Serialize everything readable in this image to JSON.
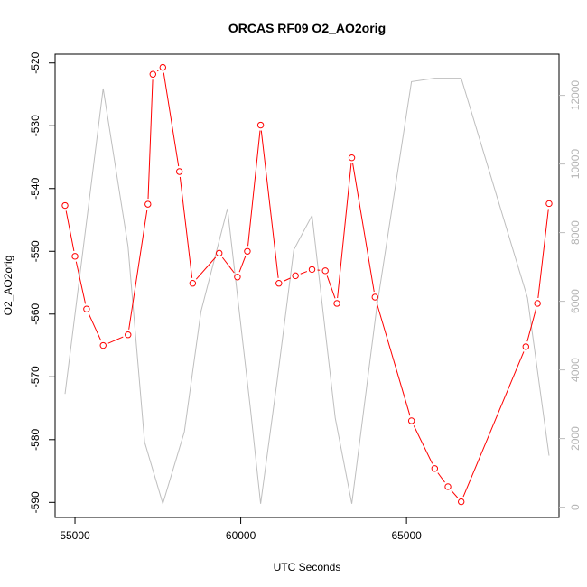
{
  "chart_data": {
    "type": "line",
    "title": "ORCAS RF09 O2_AO2orig",
    "xlabel": "UTC Seconds",
    "ylabel": "O2_AO2orig",
    "xlim": [
      54400,
      69600
    ],
    "ylim": [
      -592.4,
      -518.6
    ],
    "y2lim": [
      -300,
      13200
    ],
    "x_ticks": [
      55000,
      60000,
      65000
    ],
    "y_ticks": [
      -520,
      -530,
      -540,
      -550,
      -560,
      -570,
      -580,
      -590
    ],
    "y2_ticks": [
      0,
      2000,
      4000,
      6000,
      8000,
      10000,
      12000
    ],
    "grid": false,
    "legend": "none",
    "colors": {
      "primary": "#ff0000",
      "secondary": "#bebebe"
    },
    "series": [
      {
        "axis": "left",
        "style": "line+circle",
        "x": [
          54700,
          55000,
          55350,
          55850,
          56600,
          57200,
          57350,
          57650,
          58150,
          58550,
          59350,
          59900,
          60200,
          60600,
          61150,
          61650,
          62150,
          62550,
          62900,
          63350,
          64050,
          65150,
          65850,
          66250,
          66650,
          68600,
          68950,
          69300
        ],
        "values": [
          -542.7,
          -550.8,
          -559.2,
          -565.0,
          -563.3,
          -542.5,
          -521.8,
          -520.7,
          -537.3,
          -555.1,
          -550.3,
          -554.1,
          -550.0,
          -529.9,
          -555.1,
          -553.9,
          -552.9,
          -553.1,
          -558.3,
          -535.1,
          -557.3,
          -577.0,
          -584.6,
          -587.5,
          -589.9,
          -565.2,
          -558.3,
          -542.4
        ]
      },
      {
        "axis": "right",
        "style": "line",
        "x": [
          54700,
          55850,
          56600,
          57100,
          57650,
          58300,
          58800,
          59600,
          60300,
          60600,
          61100,
          61600,
          62150,
          62850,
          63350,
          64100,
          65150,
          65850,
          66650,
          68650,
          69300
        ],
        "values": [
          3300,
          12200,
          7600,
          1900,
          100,
          2200,
          5700,
          8700,
          2800,
          100,
          3700,
          7500,
          8500,
          2600,
          100,
          5800,
          12400,
          12500,
          12500,
          6100,
          1500
        ]
      }
    ]
  }
}
